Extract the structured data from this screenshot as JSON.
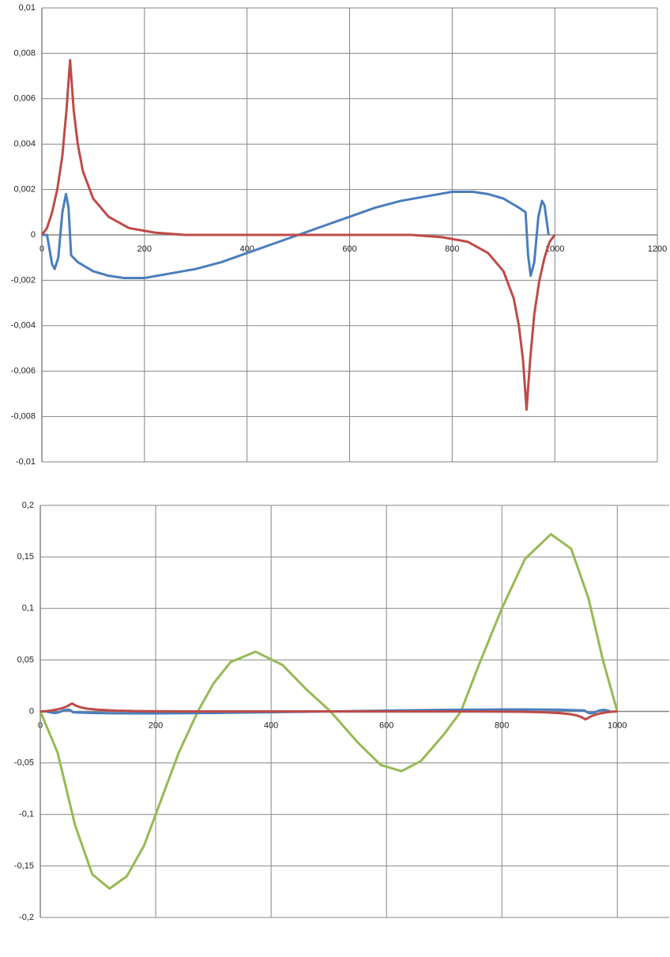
{
  "chart_data": [
    {
      "type": "line",
      "xlim": [
        0,
        1200
      ],
      "xticks": [
        0,
        200,
        400,
        600,
        800,
        1000,
        1200
      ],
      "ylim": [
        -0.01,
        0.01
      ],
      "yticks": [
        {
          "value": -0.01,
          "label": "-0,01"
        },
        {
          "value": -0.008,
          "label": "-0,008"
        },
        {
          "value": -0.006,
          "label": "-0,006"
        },
        {
          "value": -0.004,
          "label": "-0,004"
        },
        {
          "value": -0.002,
          "label": "-0,002"
        },
        0,
        {
          "value": 0.002,
          "label": "0,002"
        },
        {
          "value": 0.004,
          "label": "0,004"
        },
        {
          "value": 0.006,
          "label": "0,006"
        },
        {
          "value": 0.008,
          "label": "0,008"
        },
        {
          "value": 0.01,
          "label": "0,01"
        }
      ],
      "grid": true,
      "series": [
        {
          "color": "#4a7ebb",
          "x": [
            0,
            10,
            20,
            25,
            32,
            40,
            47,
            52,
            57,
            70,
            100,
            130,
            160,
            200,
            250,
            300,
            350,
            400,
            450,
            500,
            550,
            600,
            650,
            700,
            750,
            800,
            840,
            870,
            900,
            930,
            943,
            948,
            953,
            960,
            968,
            975,
            980,
            988
          ],
          "values": [
            0,
            0,
            -0.0013,
            -0.0015,
            -0.001,
            0.001,
            0.0018,
            0.0012,
            -0.0009,
            -0.0012,
            -0.0016,
            -0.0018,
            -0.0019,
            -0.0019,
            -0.0017,
            -0.0015,
            -0.0012,
            -0.0008,
            -0.0004,
            0,
            0.0004,
            0.0008,
            0.0012,
            0.0015,
            0.0017,
            0.0019,
            0.0019,
            0.0018,
            0.0016,
            0.0012,
            0.001,
            -0.0009,
            -0.0018,
            -0.0012,
            0.0008,
            0.0015,
            0.0013,
            0
          ]
        },
        {
          "color": "#be4b48",
          "x": [
            0,
            10,
            20,
            30,
            40,
            48,
            55,
            62,
            70,
            80,
            100,
            130,
            170,
            220,
            280,
            720,
            780,
            830,
            870,
            900,
            920,
            930,
            938,
            945,
            952,
            960,
            970,
            980,
            990,
            1000
          ],
          "values": [
            0,
            0.0003,
            0.001,
            0.002,
            0.0035,
            0.0055,
            0.0077,
            0.0055,
            0.004,
            0.0028,
            0.0016,
            0.0008,
            0.0003,
            0.0001,
            0,
            0,
            -0.0001,
            -0.0003,
            -0.0008,
            -0.0016,
            -0.0028,
            -0.004,
            -0.0055,
            -0.0077,
            -0.0055,
            -0.0035,
            -0.002,
            -0.001,
            -0.0003,
            0
          ]
        }
      ]
    },
    {
      "type": "line",
      "xlim": [
        0,
        1090
      ],
      "xticks": [
        0,
        200,
        400,
        600,
        800,
        1000
      ],
      "ylim": [
        -0.2,
        0.2
      ],
      "yticks": [
        {
          "value": -0.2,
          "label": "-0,2"
        },
        {
          "value": -0.15,
          "label": "-0,15"
        },
        {
          "value": -0.1,
          "label": "-0,1"
        },
        {
          "value": -0.05,
          "label": "-0,05"
        },
        0,
        {
          "value": 0.05,
          "label": "0,05"
        },
        {
          "value": 0.1,
          "label": "0,1"
        },
        {
          "value": 0.15,
          "label": "0,15"
        },
        {
          "value": 0.2,
          "label": "0,2"
        }
      ],
      "grid": true,
      "series": [
        {
          "color": "#98b954",
          "x": [
            0,
            30,
            60,
            90,
            120,
            150,
            180,
            210,
            240,
            273,
            300,
            330,
            373,
            420,
            460,
            503,
            550,
            590,
            626,
            660,
            700,
            729,
            760,
            800,
            840,
            885,
            920,
            950,
            975,
            1000
          ],
          "values": [
            0,
            -0.04,
            -0.11,
            -0.158,
            -0.172,
            -0.16,
            -0.13,
            -0.085,
            -0.04,
            0,
            0.027,
            0.048,
            0.058,
            0.045,
            0.022,
            0,
            -0.03,
            -0.052,
            -0.058,
            -0.048,
            -0.022,
            0,
            0.045,
            0.1,
            0.148,
            0.172,
            0.158,
            0.11,
            0.05,
            0
          ]
        },
        {
          "color": "#4a7ebb",
          "x": [
            0,
            10,
            20,
            25,
            32,
            40,
            47,
            52,
            57,
            70,
            100,
            130,
            160,
            200,
            250,
            300,
            350,
            400,
            450,
            500,
            550,
            600,
            650,
            700,
            750,
            800,
            840,
            870,
            900,
            930,
            943,
            948,
            953,
            960,
            968,
            975,
            980,
            988
          ],
          "values": [
            0,
            0,
            -0.0013,
            -0.0015,
            -0.001,
            0.001,
            0.0018,
            0.0012,
            -0.0009,
            -0.0012,
            -0.0016,
            -0.0018,
            -0.0019,
            -0.0019,
            -0.0017,
            -0.0015,
            -0.0012,
            -0.0008,
            -0.0004,
            0,
            0.0004,
            0.0008,
            0.0012,
            0.0015,
            0.0017,
            0.0019,
            0.0019,
            0.0018,
            0.0016,
            0.0012,
            0.001,
            -0.0009,
            -0.0018,
            -0.0012,
            0.0008,
            0.0015,
            0.0013,
            0
          ]
        },
        {
          "color": "#be4b48",
          "x": [
            0,
            10,
            20,
            30,
            40,
            48,
            55,
            62,
            70,
            80,
            100,
            130,
            170,
            220,
            280,
            720,
            780,
            830,
            870,
            900,
            920,
            930,
            938,
            945,
            952,
            960,
            970,
            980,
            990,
            1000
          ],
          "values": [
            0,
            0.0003,
            0.001,
            0.002,
            0.0035,
            0.0055,
            0.0077,
            0.0055,
            0.004,
            0.0028,
            0.0016,
            0.0008,
            0.0003,
            0.0001,
            0,
            0,
            -0.0001,
            -0.0003,
            -0.0008,
            -0.0016,
            -0.0028,
            -0.004,
            -0.0055,
            -0.0077,
            -0.0055,
            -0.0035,
            -0.002,
            -0.001,
            -0.0003,
            0
          ]
        }
      ]
    }
  ]
}
